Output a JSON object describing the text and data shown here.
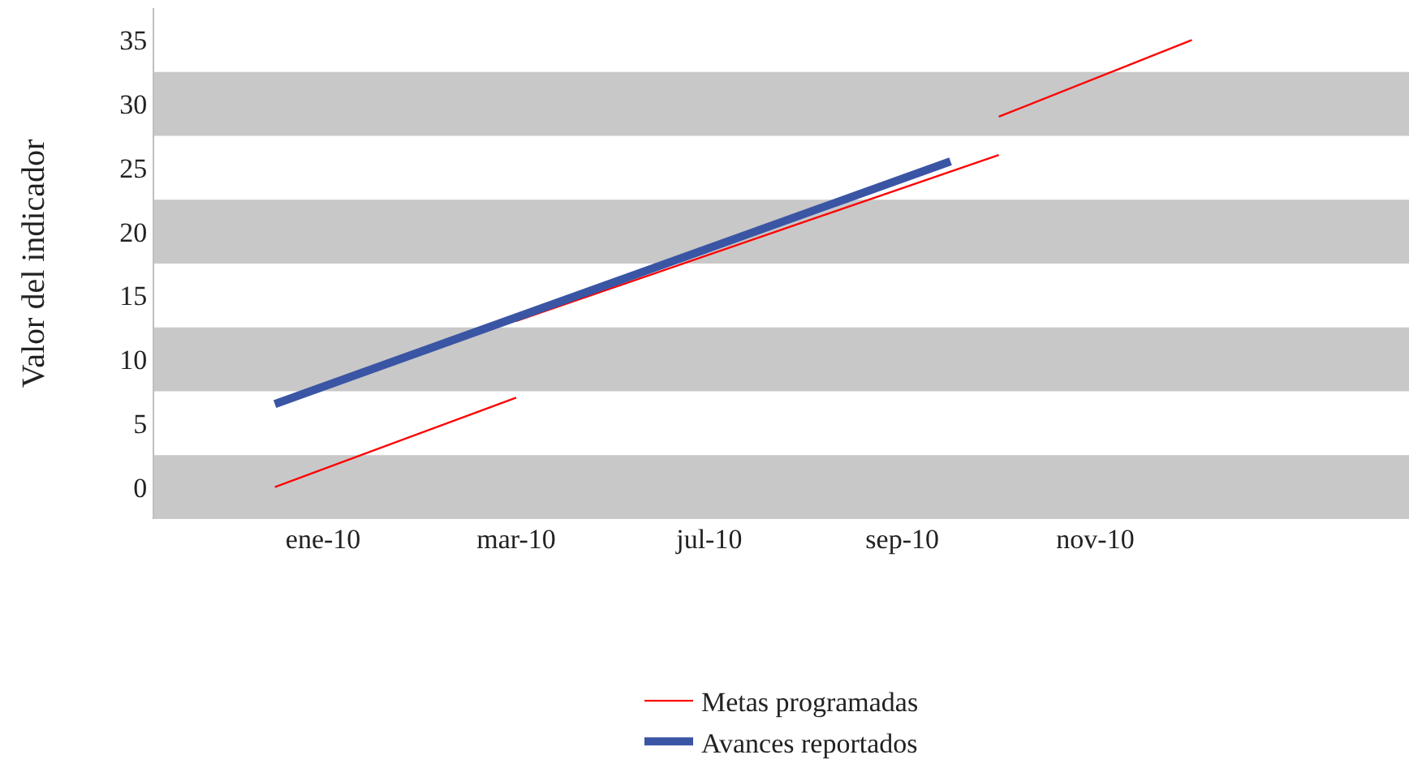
{
  "chart_data": {
    "type": "line",
    "ylabel": "Valor del indicador",
    "categories": [
      null,
      null,
      null,
      "ene-10",
      null,
      null,
      null,
      "mar-10",
      null,
      null,
      null,
      "jul-10",
      null,
      null,
      null,
      "sep-10",
      null,
      null,
      null,
      "nov-10",
      null,
      null,
      null,
      null,
      null,
      null
    ],
    "ylim": [
      -2.5,
      37.5
    ],
    "yticks": [
      0,
      5,
      10,
      15,
      20,
      25,
      30,
      35
    ],
    "series": [
      {
        "name": "Metas programadas",
        "color": "#ff0000",
        "values": [
          null,
          null,
          0,
          null,
          null,
          null,
          null,
          7,
          null,
          null,
          null,
          null,
          null,
          null,
          null,
          null,
          null,
          null,
          null,
          null,
          null,
          null,
          null,
          null,
          null,
          null
        ]
      },
      {
        "color": "#fe0101",
        "values": [
          null,
          null,
          null,
          null,
          null,
          null,
          null,
          13,
          null,
          null,
          null,
          null,
          null,
          null,
          null,
          null,
          null,
          26,
          null,
          null,
          null,
          null,
          null,
          null,
          null,
          null
        ]
      },
      {
        "color": "#fd0202",
        "values": [
          null,
          null,
          null,
          null,
          null,
          null,
          null,
          null,
          null,
          null,
          null,
          null,
          null,
          null,
          null,
          null,
          null,
          29,
          null,
          null,
          null,
          35,
          null,
          null,
          null,
          null
        ]
      },
      {
        "name": "Avances reportados",
        "color": "#3a55a4",
        "values": [
          null,
          null,
          6.5,
          null,
          null,
          null,
          null,
          null,
          null,
          null,
          null,
          null,
          null,
          null,
          null,
          null,
          25.5,
          null,
          null,
          null,
          null,
          null,
          null,
          null,
          null,
          null
        ]
      }
    ],
    "bands": [
      {
        "axis": "y",
        "from": -2.5,
        "to": 2.5,
        "label": null,
        "color": "#c8c8c9"
      },
      {
        "axis": "y",
        "from": 7.5,
        "to": 12.5,
        "label": null,
        "color": "#c8c8c9"
      },
      {
        "axis": "y",
        "from": 17.5,
        "to": 22.5,
        "label": null,
        "color": "#c8c8c9"
      },
      {
        "axis": "y",
        "from": 27.5,
        "to": 32.5,
        "label": null,
        "color": "#c8c8c9"
      }
    ],
    "legend": "bottom",
    "grid": false,
    "marker": "none",
    "line_style": "solid"
  }
}
